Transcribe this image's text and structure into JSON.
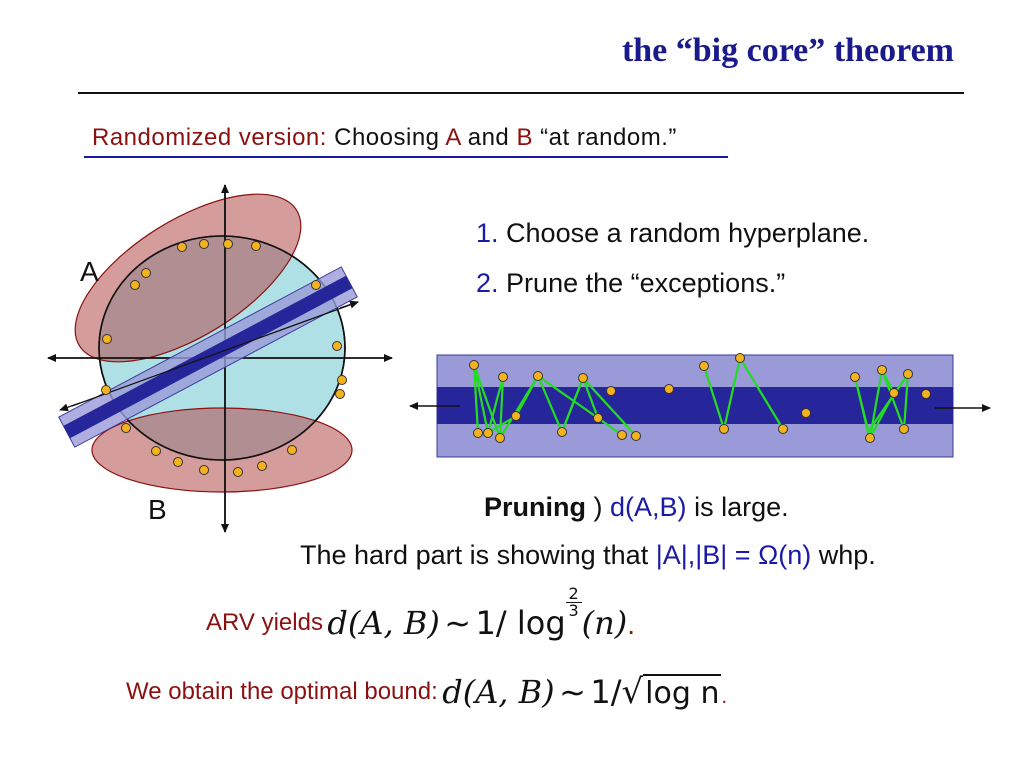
{
  "slide": {
    "title": "the “big core” theorem",
    "subtitle": {
      "label": "Randomized version:",
      "text_before": "Choosing",
      "set_a": "A",
      "and": "and",
      "set_b": "B",
      "text_after": "“at random.”"
    },
    "steps": [
      {
        "number": "1.",
        "text": "Choose a random hyperplane."
      },
      {
        "number": "2.",
        "text": "Prune the “exceptions.”"
      }
    ],
    "diagram_labels": {
      "a": "A",
      "b": "B"
    },
    "pruning": {
      "bold": "Pruning",
      "arrow": ")",
      "dist": "d(A,B)",
      "rest": "is large."
    },
    "hard_part": {
      "before": "The hard part is showing that",
      "expr": "|A|,|B| = Ω(n)",
      "after": "whp."
    },
    "arv": {
      "label": "ARV yields",
      "formula_left": "d(A, B)",
      "tilde": "∼",
      "formula_right": "1/ log",
      "exp_num": "2",
      "exp_den": "3",
      "arg": "(n)",
      "period": "."
    },
    "optimal": {
      "label": "We obtain the optimal bound:",
      "formula_left": "d(A, B)",
      "tilde": "∼",
      "formula_right": "1/",
      "sqrt_content": "log n",
      "period": "."
    },
    "colors": {
      "title": "#1a1a8c",
      "accent_red": "#8b1111",
      "accent_blue": "#1a1aa8",
      "sphere_fill": "#aee0e6",
      "cap_fill": "#b34a4a",
      "band_light": "#9a9ad8",
      "band_dark": "#26269a",
      "point": "#f5b21f",
      "edge": "#22dd22"
    }
  }
}
